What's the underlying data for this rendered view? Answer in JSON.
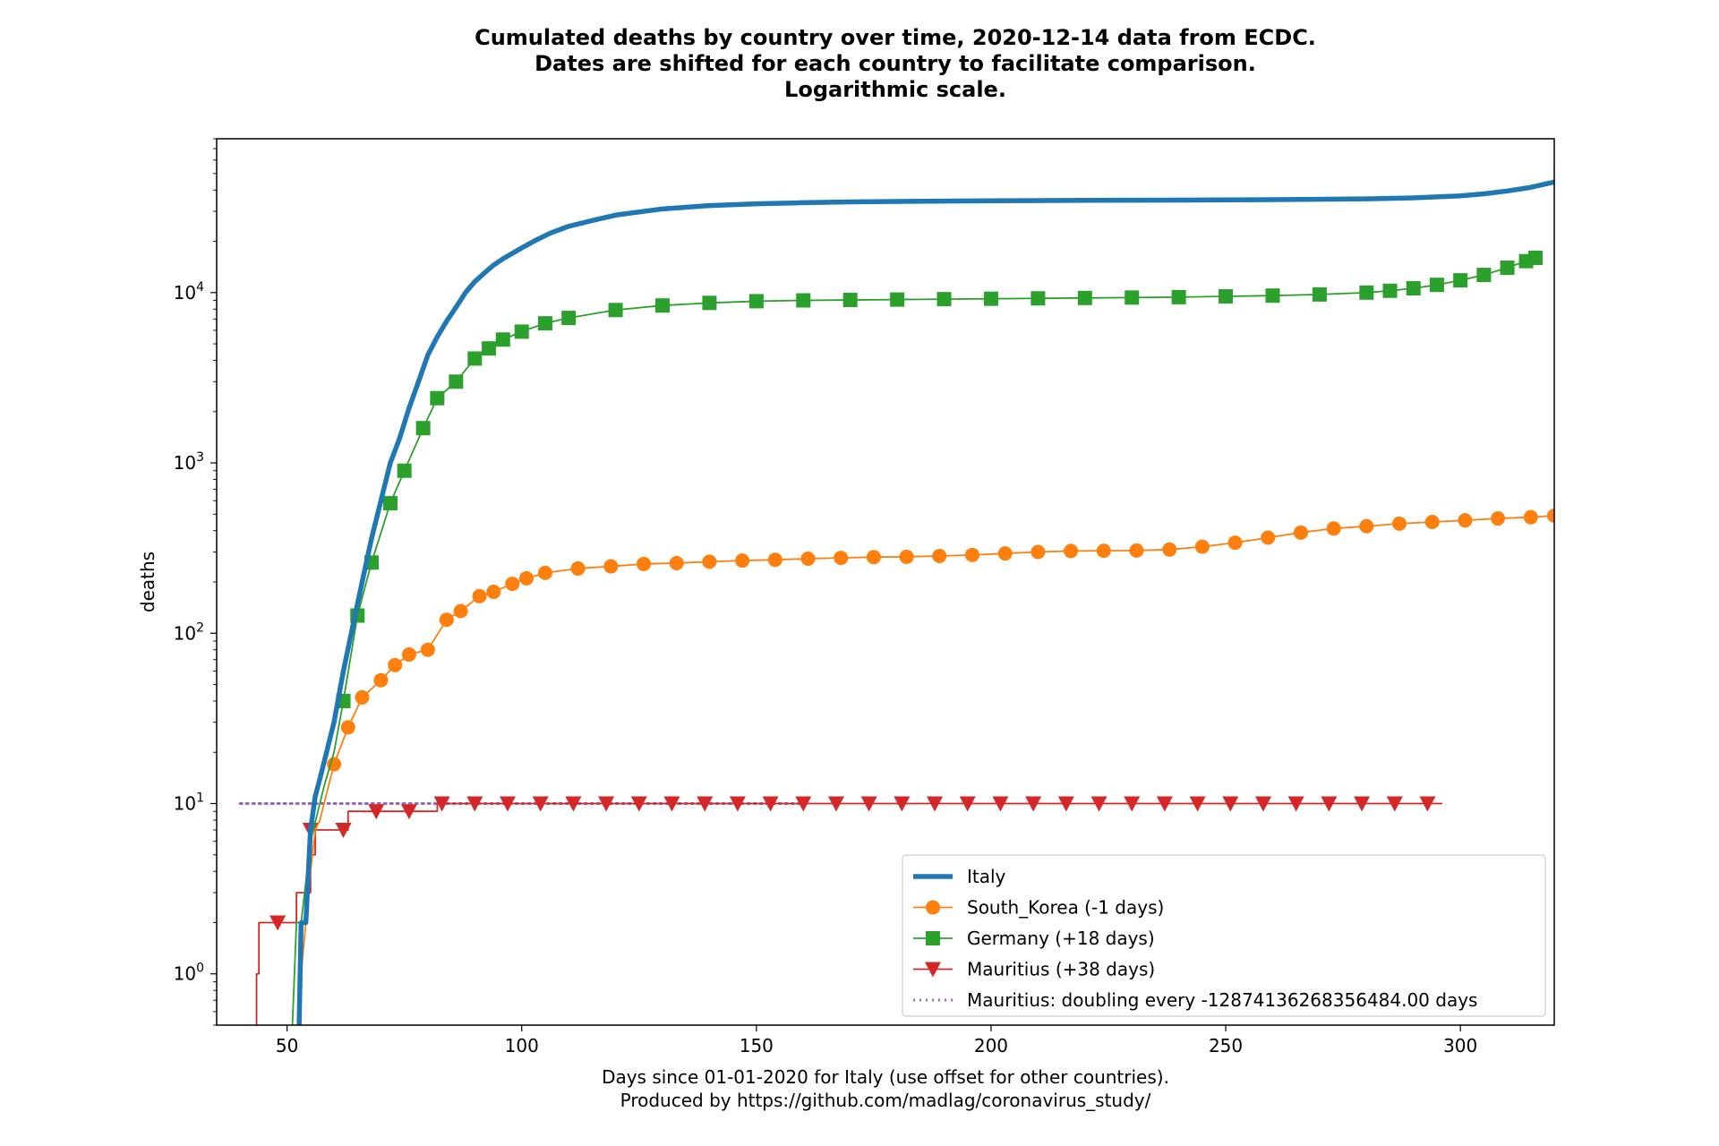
{
  "chart_data": {
    "type": "line",
    "title": [
      "Cumulated deaths by country over time, 2020-12-14 data from ECDC.",
      "Dates are shifted for each country to facilitate comparison.",
      "Logarithmic scale."
    ],
    "xlabel": [
      "Days since 01-01-2020 for Italy (use offset for other countries).",
      "Produced by https://github.com/madlag/coronavirus_study/"
    ],
    "ylabel": "deaths",
    "xlim": [
      35,
      320
    ],
    "ylim": [
      0.5,
      80000
    ],
    "yscale": "log",
    "xticks": [
      50,
      100,
      150,
      200,
      250,
      300
    ],
    "yticks": [
      {
        "value": 1,
        "base": "10",
        "exp": "0"
      },
      {
        "value": 10,
        "base": "10",
        "exp": "1"
      },
      {
        "value": 100,
        "base": "10",
        "exp": "2"
      },
      {
        "value": 1000,
        "base": "10",
        "exp": "3"
      },
      {
        "value": 10000,
        "base": "10",
        "exp": "4"
      }
    ],
    "grid": false,
    "legend_position": "lower-right",
    "series": [
      {
        "name": "Italy",
        "color": "#1f77b4",
        "marker": "none",
        "x": [
          52.5,
          53,
          54,
          55,
          56,
          57,
          58,
          60,
          62,
          64,
          66,
          68,
          70,
          72,
          74,
          76,
          78,
          80,
          82,
          84,
          86,
          88,
          90,
          92,
          94,
          96,
          98,
          100,
          103,
          106,
          110,
          115,
          120,
          130,
          140,
          150,
          160,
          170,
          180,
          200,
          220,
          240,
          260,
          280,
          290,
          300,
          305,
          310,
          315,
          320
        ],
        "y": [
          0.4,
          2,
          2,
          7,
          11,
          14,
          18,
          30,
          60,
          110,
          200,
          360,
          600,
          1000,
          1400,
          2100,
          3000,
          4300,
          5500,
          6800,
          8200,
          10000,
          11600,
          13000,
          14500,
          15800,
          17000,
          18300,
          20300,
          22300,
          24500,
          26500,
          28500,
          31000,
          32400,
          33200,
          33700,
          34100,
          34300,
          34600,
          34800,
          34900,
          35100,
          35500,
          36000,
          37000,
          38000,
          39500,
          41500,
          44600
        ]
      },
      {
        "name": "South_Korea (-1 days)",
        "color": "#ff7f0e",
        "marker": "circle",
        "x": [
          52,
          53,
          54,
          55,
          56,
          57,
          60,
          63,
          66,
          70,
          73,
          76,
          80,
          84,
          87,
          91,
          94,
          98,
          101,
          105,
          112,
          119,
          126,
          133,
          140,
          147,
          154,
          161,
          168,
          175,
          182,
          189,
          196,
          203,
          210,
          217,
          224,
          231,
          238,
          245,
          252,
          259,
          266,
          273,
          280,
          287,
          294,
          301,
          308,
          315,
          320
        ],
        "y": [
          0.4,
          1,
          2,
          4,
          7,
          8,
          17,
          28,
          42,
          53,
          65,
          75,
          80,
          120,
          135,
          165,
          175,
          195,
          210,
          226,
          240,
          247,
          255,
          258,
          263,
          267,
          270,
          274,
          277,
          280,
          281,
          284,
          288,
          294,
          300,
          304,
          305,
          306,
          310,
          322,
          340,
          364,
          390,
          412,
          425,
          440,
          450,
          460,
          472,
          480,
          490
        ]
      },
      {
        "name": "Germany (+18 days)",
        "color": "#2ca02c",
        "marker": "square",
        "x": [
          51,
          52,
          53,
          55,
          58,
          60,
          62,
          65,
          68,
          72,
          75,
          79,
          82,
          86,
          90,
          93,
          96,
          100,
          105,
          110,
          120,
          130,
          140,
          150,
          160,
          170,
          180,
          190,
          200,
          210,
          220,
          230,
          240,
          250,
          260,
          270,
          280,
          285,
          290,
          295,
          300,
          305,
          310,
          314,
          316
        ],
        "y": [
          0.4,
          2,
          2,
          6,
          13,
          20,
          40,
          127,
          260,
          580,
          900,
          1600,
          2400,
          3000,
          4100,
          4700,
          5300,
          5900,
          6600,
          7100,
          7900,
          8400,
          8700,
          8900,
          9000,
          9050,
          9100,
          9150,
          9200,
          9250,
          9300,
          9350,
          9400,
          9500,
          9600,
          9750,
          10000,
          10250,
          10600,
          11100,
          11800,
          12700,
          14000,
          15300,
          16000
        ]
      },
      {
        "name": "Mauritius (+38 days)",
        "color": "#d62728",
        "marker": "triangle",
        "step": true,
        "x": [
          43,
          43.5,
          44,
          51,
          52,
          54,
          55,
          56,
          62,
          63,
          78,
          79,
          81,
          82,
          296
        ],
        "y": [
          0.4,
          1,
          2,
          2,
          3,
          3,
          5,
          7,
          7,
          9,
          9,
          9,
          9,
          10,
          10
        ],
        "markers": [
          [
            48,
            2
          ],
          [
            55,
            7
          ],
          [
            62,
            7
          ],
          [
            69,
            9
          ],
          [
            76,
            9
          ],
          [
            83,
            10
          ],
          [
            90,
            10
          ],
          [
            97,
            10
          ],
          [
            104,
            10
          ],
          [
            111,
            10
          ],
          [
            118,
            10
          ],
          [
            125,
            10
          ],
          [
            132,
            10
          ],
          [
            139,
            10
          ],
          [
            146,
            10
          ],
          [
            153,
            10
          ],
          [
            160,
            10
          ],
          [
            167,
            10
          ],
          [
            174,
            10
          ],
          [
            181,
            10
          ],
          [
            188,
            10
          ],
          [
            195,
            10
          ],
          [
            202,
            10
          ],
          [
            209,
            10
          ],
          [
            216,
            10
          ],
          [
            223,
            10
          ],
          [
            230,
            10
          ],
          [
            237,
            10
          ],
          [
            244,
            10
          ],
          [
            251,
            10
          ],
          [
            258,
            10
          ],
          [
            265,
            10
          ],
          [
            272,
            10
          ],
          [
            279,
            10
          ],
          [
            286,
            10
          ],
          [
            293,
            10
          ]
        ]
      },
      {
        "name": "Mauritius: doubling every -12874136268356484.00 days",
        "color": "#9467bd",
        "marker": "none",
        "dotted": true,
        "x": [
          40,
          160
        ],
        "y": [
          10,
          10
        ]
      }
    ]
  }
}
